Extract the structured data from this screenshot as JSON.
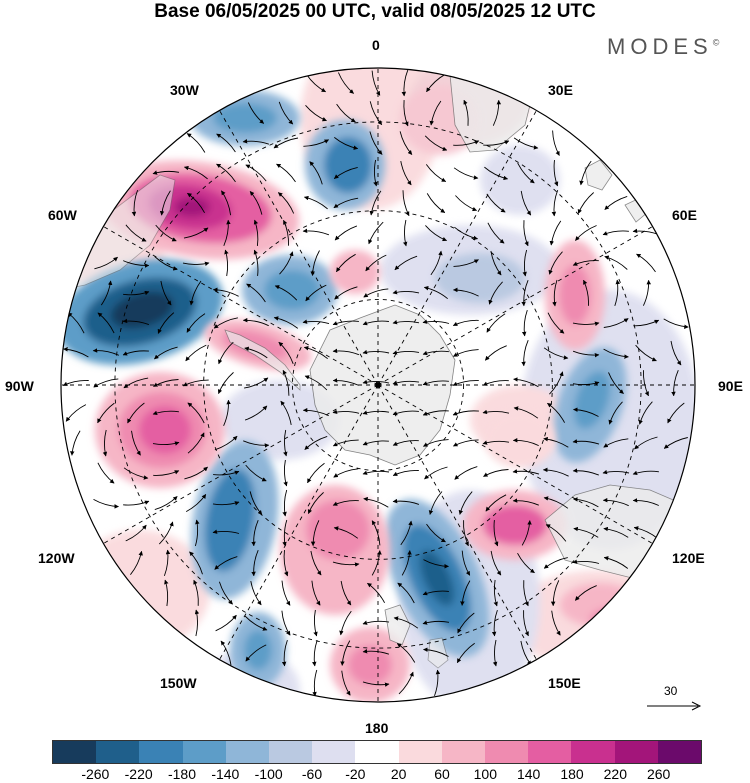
{
  "title": "Base 06/05/2025 00 UTC, valid 08/05/2025 12 UTC",
  "brand": "MODES",
  "brand_mark": "©",
  "longitude_labels": {
    "lon_0": "0",
    "lon_30e": "30E",
    "lon_60e": "60E",
    "lon_90e": "90E",
    "lon_120e": "120E",
    "lon_150e": "150E",
    "lon_180": "180",
    "lon_150w": "150W",
    "lon_120w": "120W",
    "lon_90w": "90W",
    "lon_60w": "60W",
    "lon_30w": "30W"
  },
  "vector_scale_label": "30",
  "colorbar": {
    "colors": [
      "#173b5c",
      "#1f5f8b",
      "#3a82b5",
      "#5d9dc8",
      "#8fb6d8",
      "#bac9e1",
      "#dedff0",
      "#ffffff",
      "#fadadd",
      "#f6b6c6",
      "#ef8bb0",
      "#e45ea2",
      "#c9308f",
      "#a3157a",
      "#6b0a6b"
    ],
    "tick_labels": [
      "-260",
      "-220",
      "-180",
      "-140",
      "-100",
      "-60",
      "-20",
      "20",
      "60",
      "100",
      "140",
      "180",
      "220",
      "260"
    ]
  },
  "map_colors": {
    "ocean": "#ffffff",
    "land": "#ececec",
    "border": "#6e6e6e",
    "grid": "#000000",
    "neg_strong": "#173b5c",
    "neg_mid": "#3a82b5",
    "neg_weak": "#8fb6d8",
    "neg_faint": "#dedff0",
    "pos_faint": "#fadadd",
    "pos_weak": "#f6b6c6",
    "pos_mid": "#e45ea2",
    "pos_strong": "#a3157a"
  }
}
